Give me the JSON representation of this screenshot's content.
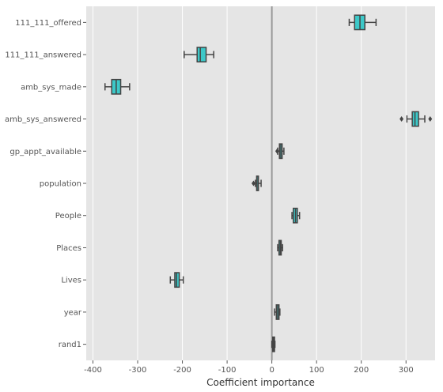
{
  "chart_data": {
    "type": "boxplot",
    "orientation": "horizontal",
    "xlabel": "Coefficient importance",
    "xlim": [
      -415,
      365
    ],
    "x_ticks": [
      -400,
      -300,
      -200,
      -100,
      0,
      100,
      200,
      300
    ],
    "grid": true,
    "reference_line_x": 0,
    "categories": [
      "111_111_offered",
      "111_111_answered",
      "amb_sys_made",
      "amb_sys_answered",
      "gp_appt_available",
      "population",
      "People",
      "Places",
      "Lives",
      "year",
      "rand1"
    ],
    "boxes": [
      {
        "min": 173,
        "q1": 185,
        "median": 197,
        "q3": 208,
        "max": 233,
        "outliers": []
      },
      {
        "min": -196,
        "q1": -167,
        "median": -160,
        "q3": -147,
        "max": -130,
        "outliers": []
      },
      {
        "min": -373,
        "q1": -358,
        "median": -348,
        "q3": -338,
        "max": -318,
        "outliers": []
      },
      {
        "min": 302,
        "q1": 314,
        "median": 320,
        "q3": 328,
        "max": 342,
        "outliers": [
          290,
          354
        ]
      },
      {
        "min": 13,
        "q1": 17,
        "median": 20,
        "q3": 23,
        "max": 27,
        "outliers": [
          12
        ]
      },
      {
        "min": -37,
        "q1": -34,
        "median": -33,
        "q3": -30,
        "max": -24,
        "outliers": [
          -41
        ]
      },
      {
        "min": 45,
        "q1": 48,
        "median": 53,
        "q3": 57,
        "max": 62,
        "outliers": []
      },
      {
        "min": 13,
        "q1": 16,
        "median": 19,
        "q3": 21,
        "max": 24,
        "outliers": []
      },
      {
        "min": -227,
        "q1": -217,
        "median": -213,
        "q3": -207,
        "max": -198,
        "outliers": []
      },
      {
        "min": 6,
        "q1": 10,
        "median": 13,
        "q3": 16,
        "max": 18,
        "outliers": []
      },
      {
        "min": 0,
        "q1": 2,
        "median": 4,
        "q3": 6,
        "max": 7,
        "outliers": []
      }
    ],
    "colors": {
      "background": "#e5e5e5",
      "grid": "#ffffff",
      "box_fill": "#3cc8c8",
      "box_edge": "#444444",
      "reference_line": "#999999"
    }
  }
}
